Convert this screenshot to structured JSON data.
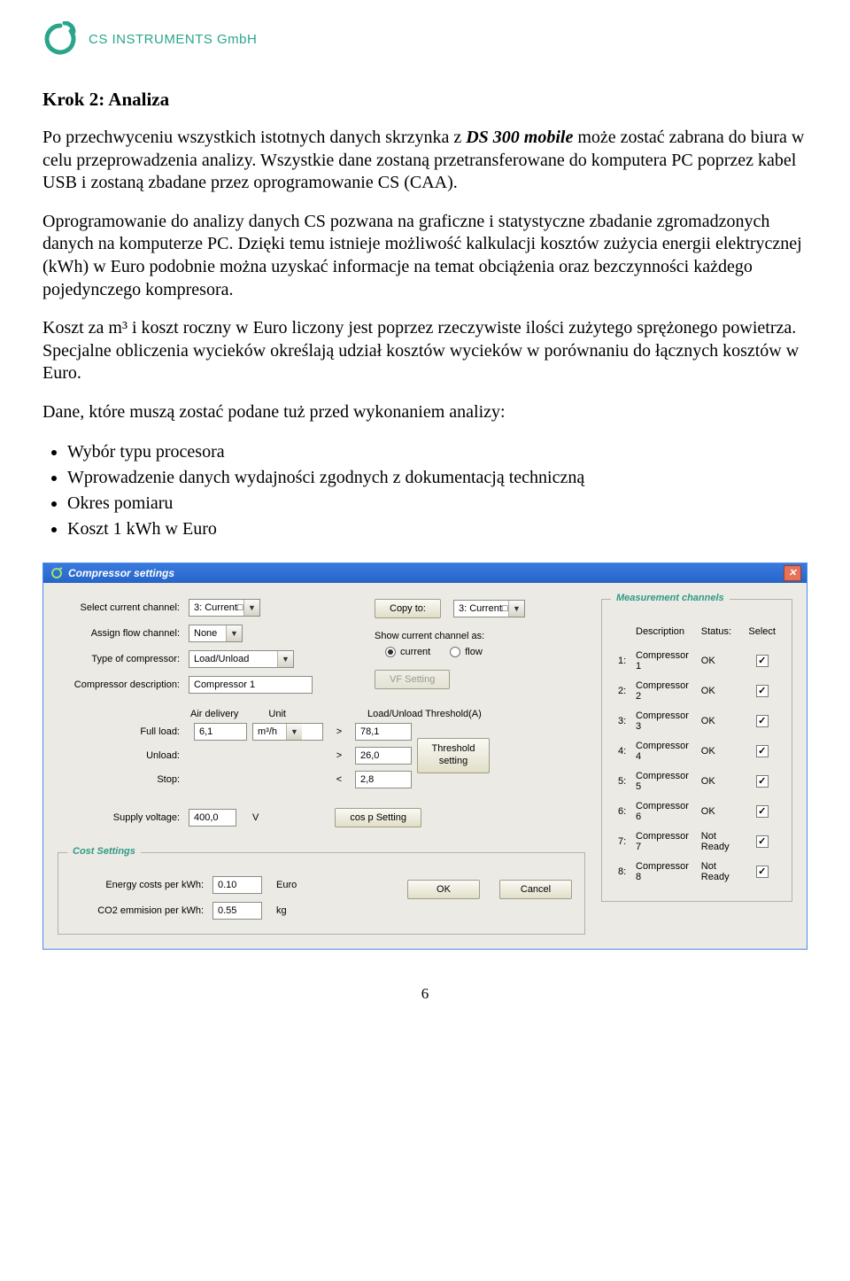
{
  "logo": {
    "brand_text": "CS INSTRUMENTS GmbH",
    "brand_color": "#2aa58b"
  },
  "document": {
    "step_title": "Krok 2: Analiza",
    "p1_a": "Po przechwyceniu wszystkich istotnych danych skrzynka z ",
    "p1_em": "DS 300 mobile",
    "p1_b": " może zostać zabrana do biura w celu przeprowadzenia analizy. Wszystkie dane zostaną przetransferowane do komputera PC poprzez kabel USB i zostaną zbadane przez oprogramowanie CS (CAA).",
    "p2": "Oprogramowanie do analizy danych CS pozwana na graficzne i statystyczne zbadanie zgromadzonych danych na komputerze PC. Dzięki temu istnieje możliwość kalkulacji kosztów zużycia energii elektrycznej (kWh) w Euro podobnie można uzyskać informacje na temat obciążenia oraz bezczynności każdego pojedynczego kompresora.",
    "p3": "Koszt za m³ i koszt roczny w Euro liczony jest poprzez rzeczywiste ilości zużytego sprężonego powietrza. Specjalne obliczenia wycieków określają udział kosztów wycieków w porównaniu do łącznych kosztów w Euro.",
    "p4": "Dane, które muszą zostać podane tuż przed wykonaniem analizy:",
    "bullets": [
      "Wybór typu procesora",
      "Wprowadzenie danych wydajności zgodnych z dokumentacją techniczną",
      "Okres pomiaru",
      "Koszt 1 kWh w Euro"
    ],
    "page_number": "6"
  },
  "dialog": {
    "title": "Compressor settings",
    "labels": {
      "select_current_channel": "Select current channel:",
      "assign_flow_channel": "Assign flow channel:",
      "type_of_compressor": "Type of compressor:",
      "compressor_description": "Compressor description:",
      "air_delivery": "Air delivery",
      "unit": "Unit",
      "full_load": "Full load:",
      "unload": "Unload:",
      "stop": "Stop:",
      "supply_voltage": "Supply voltage:",
      "copy_to": "Copy to:",
      "show_channel_as": "Show current channel as:",
      "radio_current": "current",
      "radio_flow": "flow",
      "vf_setting": "VF Setting",
      "threshold_header": "Load/Unload Threshold(A)",
      "threshold_btn": "Threshold setting",
      "cosp_btn": "cos p Setting",
      "voltage_unit": "V",
      "ok": "OK",
      "cancel": "Cancel"
    },
    "values": {
      "current_channel": "3: Current□",
      "copy_to_channel": "3: Current□",
      "flow_channel": "None",
      "compressor_type": "Load/Unload",
      "compressor_desc": "Compressor 1",
      "full_load_val": "6,1",
      "unit_val": "m³/h",
      "threshold_full": "78,1",
      "threshold_unload": "26,0",
      "threshold_stop": "2,8",
      "voltage": "400,0",
      "radio_selected": "current"
    },
    "cost_group": {
      "legend": "Cost Settings",
      "energy_label": "Energy costs per kWh:",
      "energy_val": "0.10",
      "energy_unit": "Euro",
      "co2_label": "CO2 emmision per kWh:",
      "co2_val": "0.55",
      "co2_unit": "kg"
    },
    "meas_group": {
      "legend": "Measurement channels",
      "col_desc": "Description",
      "col_status": "Status:",
      "col_select": "Select",
      "rows": [
        {
          "idx": "1:",
          "desc": "Compressor 1",
          "status": "OK",
          "checked": true
        },
        {
          "idx": "2:",
          "desc": "Compressor 2",
          "status": "OK",
          "checked": true
        },
        {
          "idx": "3:",
          "desc": "Compressor 3",
          "status": "OK",
          "checked": true
        },
        {
          "idx": "4:",
          "desc": "Compressor 4",
          "status": "OK",
          "checked": true
        },
        {
          "idx": "5:",
          "desc": "Compressor 5",
          "status": "OK",
          "checked": true
        },
        {
          "idx": "6:",
          "desc": "Compressor 6",
          "status": "OK",
          "checked": true
        },
        {
          "idx": "7:",
          "desc": "Compressor 7",
          "status": "Not Ready",
          "checked": true
        },
        {
          "idx": "8:",
          "desc": "Compressor 8",
          "status": "Not Ready",
          "checked": true
        }
      ]
    }
  }
}
